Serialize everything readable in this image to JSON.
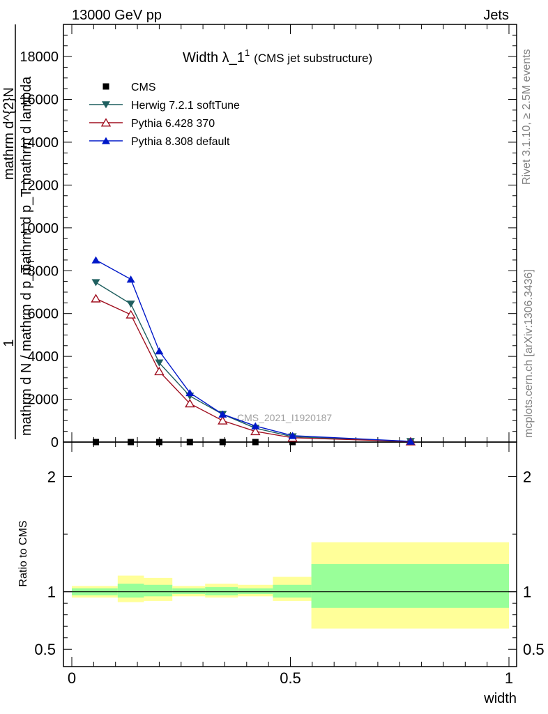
{
  "header": {
    "left": "13000 GeV pp",
    "right": "Jets"
  },
  "title": {
    "main": "Width λ_1",
    "superscript": "1",
    "sub": "(CMS jet substructure)"
  },
  "side_labels": {
    "rivet": "Rivet 3.1.10, ≥ 2.5M events",
    "mcplots": "mcplots.cern.ch [arXiv:1306.3436]"
  },
  "watermark": "CMS_2021_I1920187",
  "ylabel": {
    "one": "1",
    "denominator": "mathrm d N / mathrm d p_T",
    "den_sub": "T",
    "numerator_parts": [
      "mathrm d^{2}N",
      "mathrm d p_T mathrm d lambda"
    ],
    "numerator_sub": "T"
  },
  "ratio_ylabel": "Ratio to CMS",
  "xlabel": "width",
  "colors": {
    "cms": "#000000",
    "herwig": "#1f5f5f",
    "pythia6": "#a01020",
    "pythia8": "#0018c8",
    "band_inner": "#99ff99",
    "band_outer": "#ffff99"
  },
  "chart_data": {
    "type": "line",
    "x_range": [
      0,
      1
    ],
    "main_ylim": [
      0,
      19500
    ],
    "main_yticks": [
      "0",
      "2000",
      "4000",
      "6000",
      "8000",
      "10000",
      "12000",
      "14000",
      "16000",
      "18000"
    ],
    "ratio_ylim": [
      0.35,
      2.3
    ],
    "ratio_yticks": [
      "0.5",
      "1",
      "2"
    ],
    "xticks": [
      "0",
      "0.5",
      "1"
    ],
    "legend_position": "top-left",
    "x": [
      0.055,
      0.135,
      0.2,
      0.27,
      0.345,
      0.42,
      0.505,
      0.775
    ],
    "series": [
      {
        "name": "CMS",
        "color_key": "cms",
        "marker": "square",
        "values": [
          0,
          0,
          0,
          0,
          0,
          0,
          0,
          0
        ]
      },
      {
        "name": "Herwig 7.2.1 softTune",
        "color_key": "herwig",
        "marker": "triangle-down",
        "values": [
          7450,
          6450,
          3700,
          2150,
          1300,
          650,
          250,
          30
        ]
      },
      {
        "name": "Pythia 6.428 370",
        "color_key": "pythia6",
        "marker": "triangle-up-open",
        "values": [
          6700,
          5950,
          3300,
          1800,
          1000,
          500,
          200,
          25
        ]
      },
      {
        "name": "Pythia 8.308 default",
        "color_key": "pythia8",
        "marker": "triangle-up",
        "values": [
          8500,
          7600,
          4250,
          2300,
          1300,
          750,
          300,
          35
        ]
      }
    ],
    "ratio_bands": [
      {
        "xlo": 0.0,
        "xhi": 0.105,
        "inner": [
          0.97,
          1.03
        ],
        "outer": [
          0.95,
          1.05
        ]
      },
      {
        "xlo": 0.105,
        "xhi": 0.165,
        "inner": [
          0.95,
          1.07
        ],
        "outer": [
          0.91,
          1.14
        ]
      },
      {
        "xlo": 0.165,
        "xhi": 0.23,
        "inner": [
          0.96,
          1.06
        ],
        "outer": [
          0.92,
          1.12
        ]
      },
      {
        "xlo": 0.23,
        "xhi": 0.305,
        "inner": [
          0.98,
          1.03
        ],
        "outer": [
          0.96,
          1.05
        ]
      },
      {
        "xlo": 0.305,
        "xhi": 0.38,
        "inner": [
          0.97,
          1.04
        ],
        "outer": [
          0.95,
          1.07
        ]
      },
      {
        "xlo": 0.38,
        "xhi": 0.46,
        "inner": [
          0.98,
          1.03
        ],
        "outer": [
          0.96,
          1.06
        ]
      },
      {
        "xlo": 0.46,
        "xhi": 0.548,
        "inner": [
          0.95,
          1.06
        ],
        "outer": [
          0.92,
          1.13
        ]
      },
      {
        "xlo": 0.548,
        "xhi": 1.0,
        "inner": [
          0.86,
          1.24
        ],
        "outer": [
          0.68,
          1.43
        ]
      }
    ]
  }
}
